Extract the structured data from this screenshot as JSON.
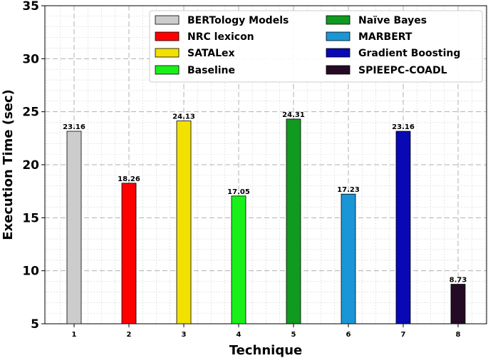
{
  "chart_data": {
    "type": "bar",
    "xlabel": "Technique",
    "ylabel": "Execution Time (sec)",
    "ylim": [
      5,
      35
    ],
    "yticks": [
      5,
      10,
      15,
      20,
      25,
      30,
      35
    ],
    "categories": [
      "1",
      "2",
      "3",
      "4",
      "5",
      "6",
      "7",
      "8"
    ],
    "grid": true,
    "legend_position": "top-right",
    "series": [
      {
        "name": "BERTology Models",
        "category": "1",
        "value": 23.16,
        "label": "23.16",
        "color": "#cccccc"
      },
      {
        "name": "NRC lexicon",
        "category": "2",
        "value": 18.26,
        "label": "18.26",
        "color": "#ff0000"
      },
      {
        "name": "SATALex",
        "category": "3",
        "value": 24.13,
        "label": "24.13",
        "color": "#f2e000"
      },
      {
        "name": "Baseline",
        "category": "4",
        "value": 17.05,
        "label": "17.05",
        "color": "#19f019"
      },
      {
        "name": "Naïve Bayes",
        "category": "5",
        "value": 24.31,
        "label": "24.31",
        "color": "#109a20"
      },
      {
        "name": "MARBERT",
        "category": "6",
        "value": 17.23,
        "label": "17.23",
        "color": "#1a96d6"
      },
      {
        "name": "Gradient Boosting",
        "category": "7",
        "value": 23.16,
        "label": "23.16",
        "color": "#0808b4"
      },
      {
        "name": "SPIEEPC-COADL",
        "category": "8",
        "value": 8.73,
        "label": "8.73",
        "color": "#250a26"
      }
    ]
  }
}
